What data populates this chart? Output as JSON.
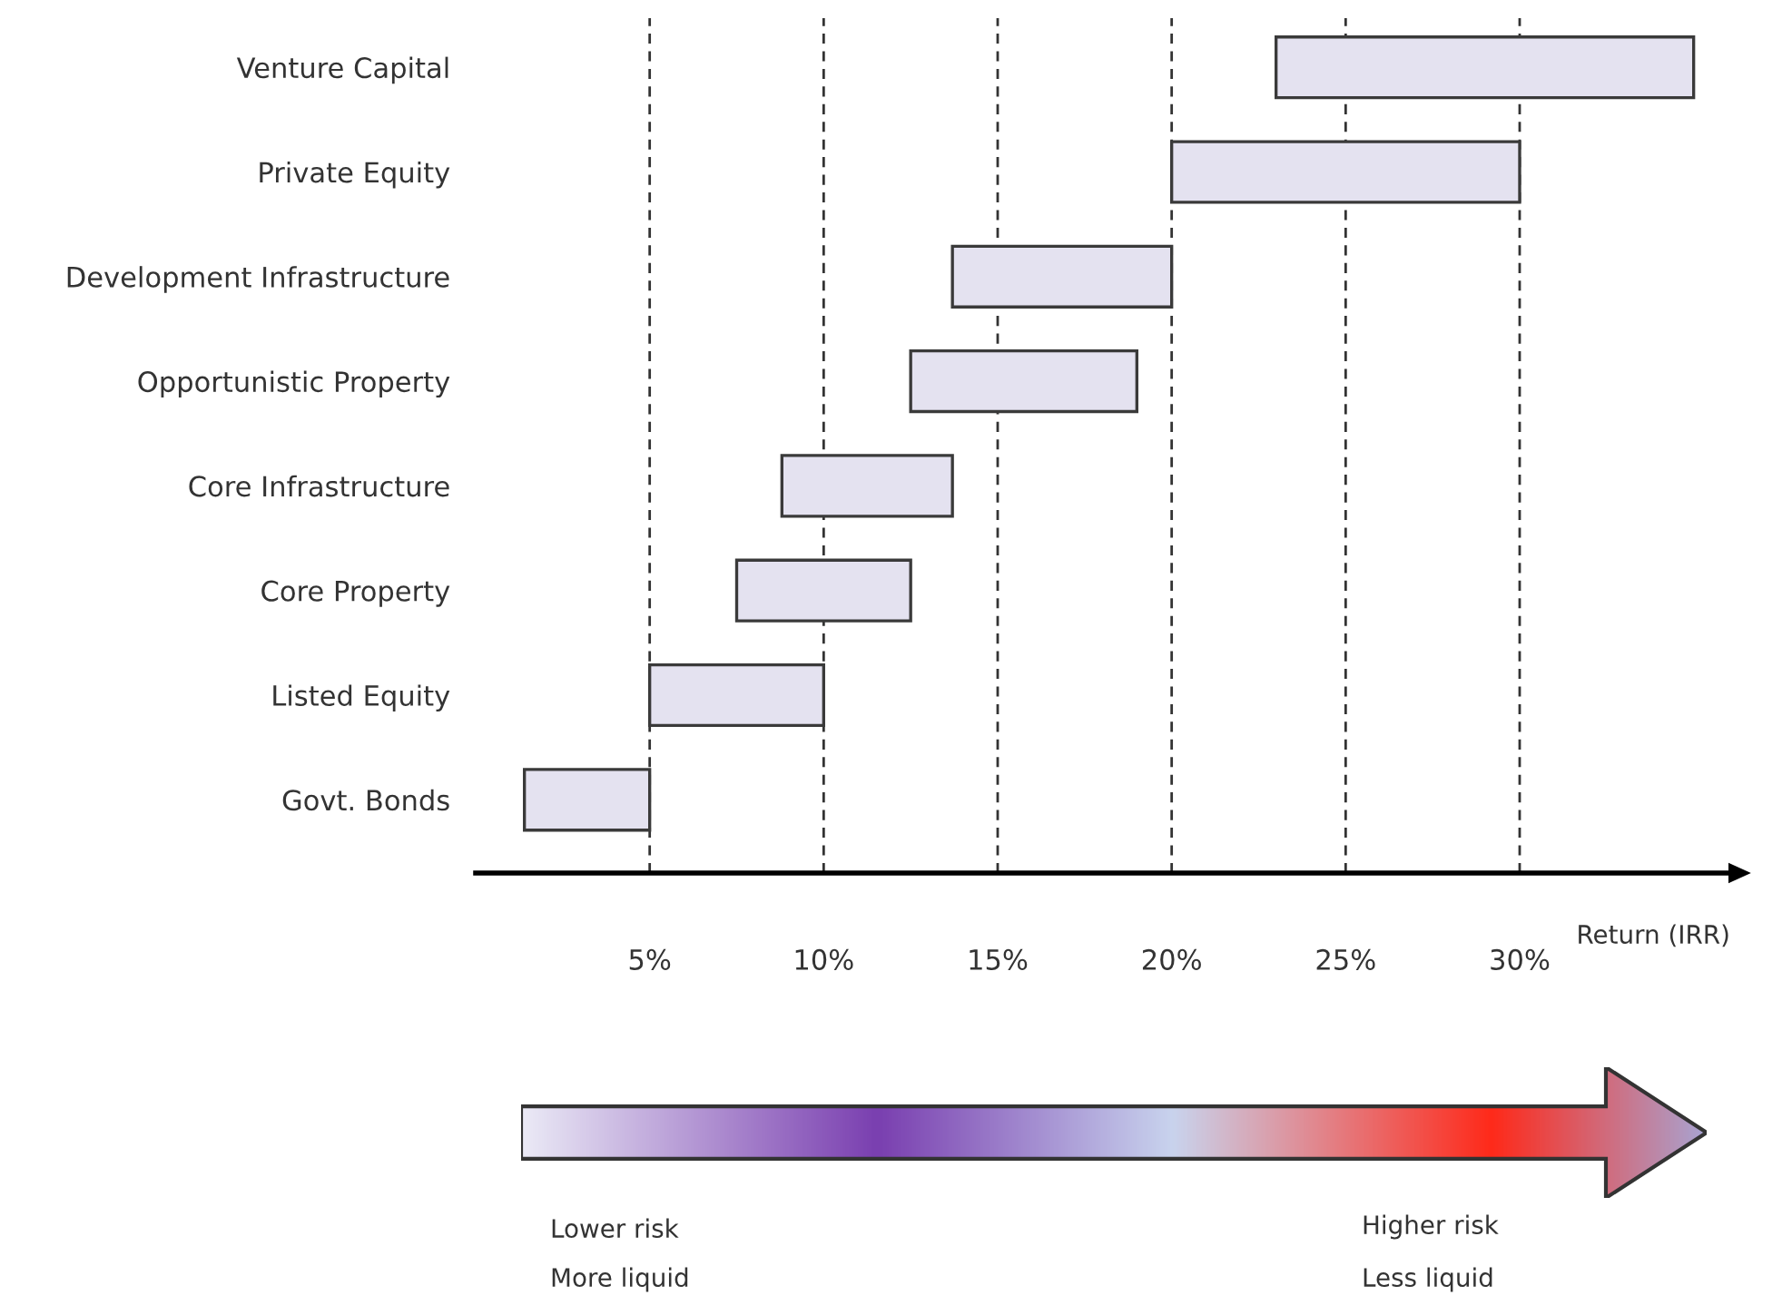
{
  "chart_data": {
    "type": "bar",
    "orientation": "horizontal",
    "categories": [
      "Venture Capital",
      "Private Equity",
      "Development Infrastructure",
      "Opportunistic Property",
      "Core Infrastructure",
      "Core Property",
      "Listed Equity",
      "Govt. Bonds"
    ],
    "base": [
      23,
      20,
      13.7,
      12.5,
      8.8,
      7.5,
      5,
      1.4
    ],
    "values": [
      12,
      10,
      6.3,
      6.5,
      4.9,
      5,
      5,
      3.6
    ],
    "color": "#e4e2f0",
    "xlim": [
      0,
      36
    ],
    "xticks": [
      {
        "value": 5,
        "label": "5%"
      },
      {
        "value": 10,
        "label": "10%"
      },
      {
        "value": 15,
        "label": "15%"
      },
      {
        "value": 20,
        "label": "20%"
      },
      {
        "value": 25,
        "label": "25%"
      },
      {
        "value": 30,
        "label": "30%"
      }
    ],
    "xlabel": "Return (IRR)",
    "grid": "x",
    "annotations": [
      "Lower risk",
      "More liquid",
      "Higher risk",
      "Less liquid"
    ]
  }
}
